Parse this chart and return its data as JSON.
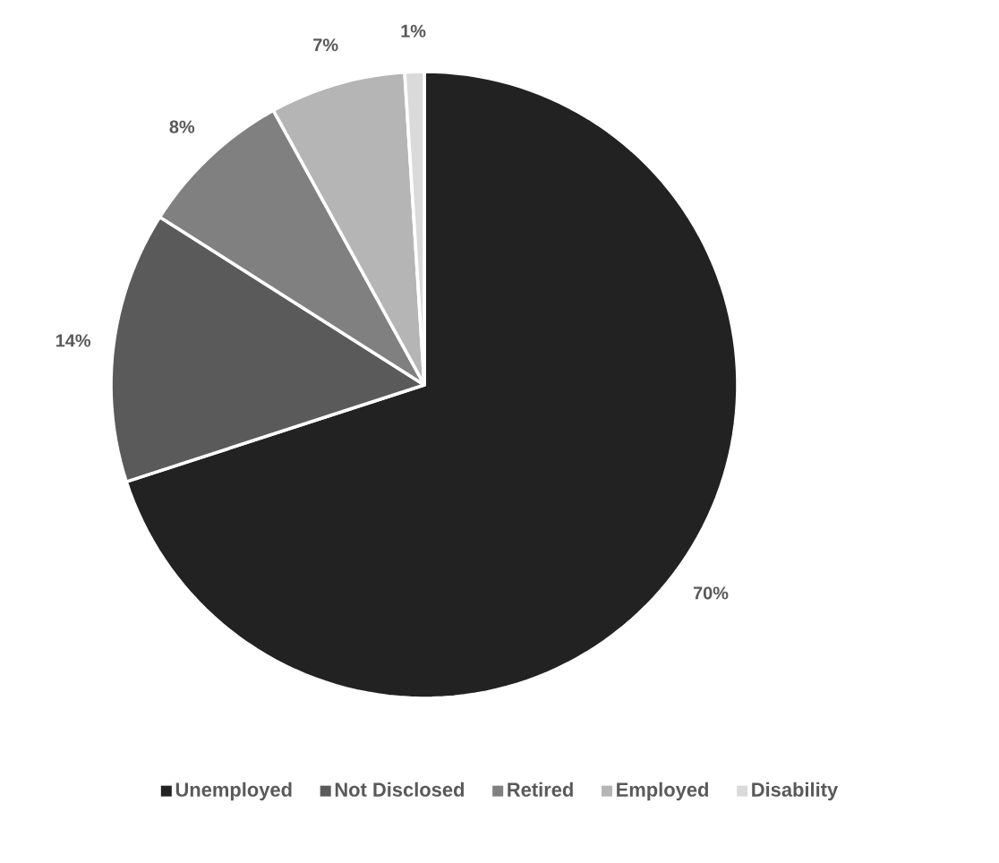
{
  "chart_data": {
    "type": "pie",
    "categories": [
      "Unemployed",
      "Not Disclosed",
      "Retired",
      "Employed",
      "Disability"
    ],
    "values": [
      70,
      14,
      8,
      7,
      1
    ],
    "colors": [
      "#222222",
      "#5a5a5a",
      "#808080",
      "#b5b5b5",
      "#dadada"
    ],
    "value_labels": [
      "70%",
      "14%",
      "8%",
      "7%",
      "1%"
    ],
    "legend": "bottom"
  }
}
